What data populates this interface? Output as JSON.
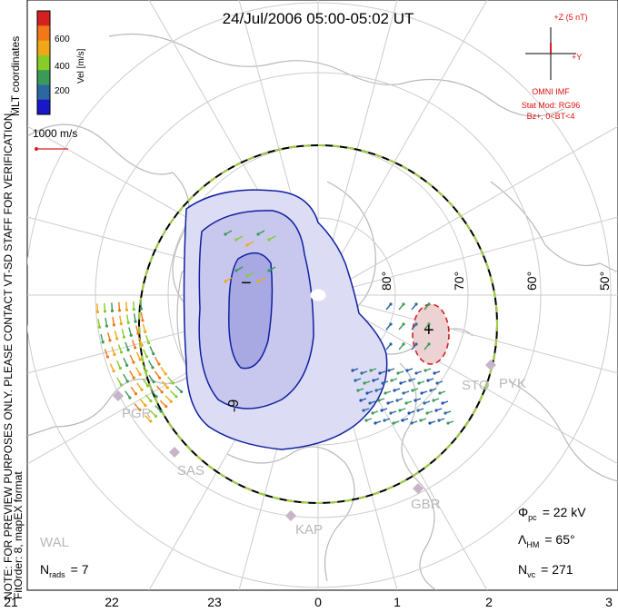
{
  "title": "24/Jul/2006 05:00-05:02 UT",
  "colorbar": {
    "label": "Vel [m/s]",
    "ticks": [
      "600",
      "400",
      "200"
    ],
    "colors": [
      "#d42020",
      "#f07818",
      "#f0a818",
      "#88cc28",
      "#3c9a58",
      "#2a68a0",
      "#1818c8"
    ]
  },
  "coordinates_label": "MLT coordinates",
  "scale_vector_label": "1000 m/s",
  "imf": {
    "z_label": "+Z (5 nT)",
    "y_label": "+Y",
    "source": "OMNI IMF",
    "model_line1": "Stat Mod: RG96",
    "model_line2": "Bz+, 0<BT<4"
  },
  "note": {
    "line1": "NOTE: FOR PREVIEW PURPOSES ONLY. PLEASE CONTACT VT-SD STAFF FOR VERIFICATION.",
    "line2": "FitOrder: 8, mapEX format"
  },
  "latitude_labels": [
    "80°",
    "70°",
    "60°",
    "50°"
  ],
  "mlt_labels": [
    "21",
    "22",
    "23",
    "0",
    "1",
    "2",
    "3"
  ],
  "radar_labels": [
    "PGR",
    "SAS",
    "KAP",
    "WAL",
    "GBR",
    "STO",
    "PYK"
  ],
  "stats": {
    "phi_pc": "Φ",
    "phi_pc_sub": "pc",
    "phi_pc_value": "= 22 kV",
    "lambda_hm": "Λ",
    "lambda_hm_sub": "HM",
    "lambda_hm_value": "= 65°",
    "n_vc": "N",
    "n_vc_sub": "vc",
    "n_vc_value": "= 271",
    "n_rads": "N",
    "n_rads_sub": "rads",
    "n_rads_value": "= 7"
  },
  "potential_labels": {
    "minimum": "−",
    "maximum": "+",
    "contour_value": "-9"
  },
  "colors": {
    "contour": "#1020a0",
    "cell_fill": "#c8c8ee",
    "inner_cell_fill": "#a0a0e0",
    "positive_fill": "#e8c8c8",
    "positive_contour": "#d02020",
    "grid": "#cccccc",
    "coast": "#b8b8b8",
    "hm_boundary_a": "#000000",
    "hm_boundary_b": "#a0d040"
  }
}
